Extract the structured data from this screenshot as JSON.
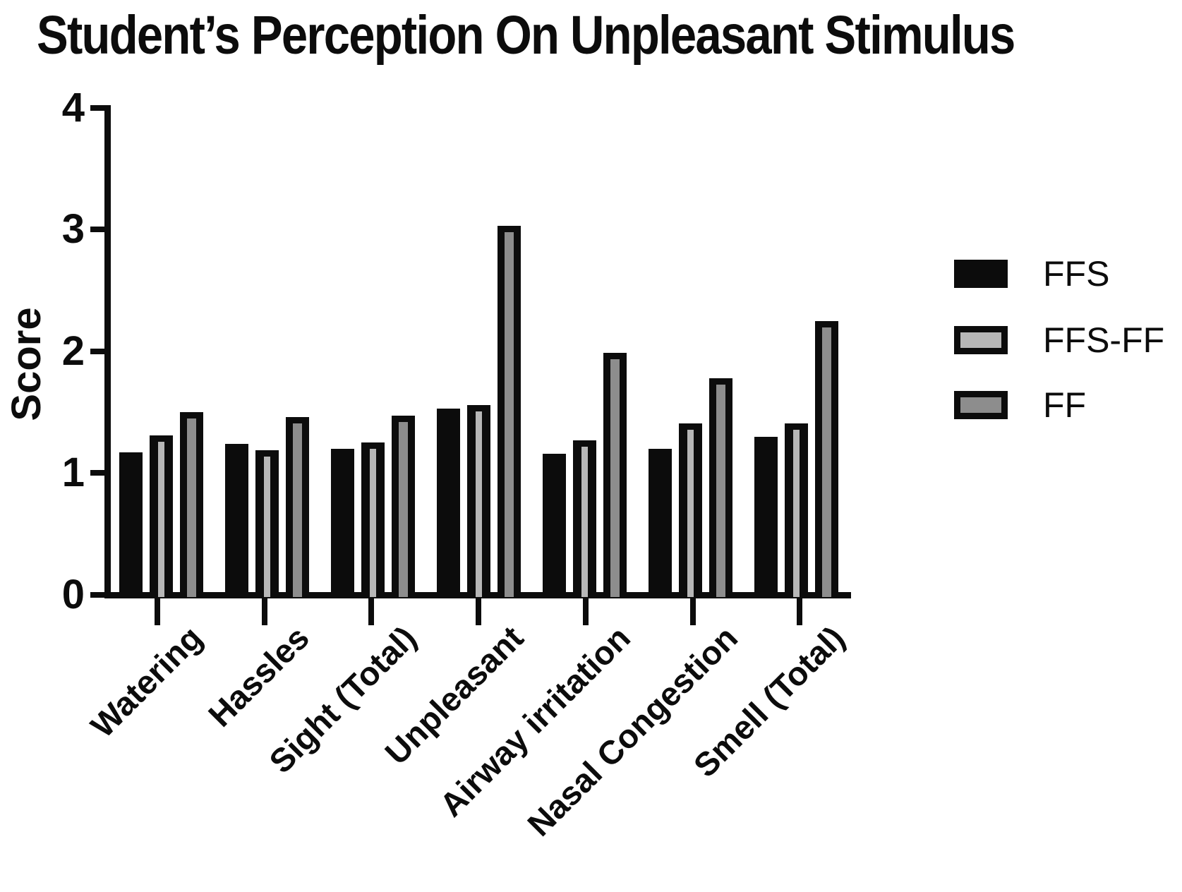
{
  "figure": {
    "background": "#ffffff",
    "ink": "#0c0c0c"
  },
  "chart_data": {
    "type": "bar",
    "title": "Student’s Perception On Unpleasant Stimulus",
    "ylabel": "Score",
    "xlabel": "",
    "ylim": [
      0,
      4
    ],
    "yticks": [
      0,
      1,
      2,
      3,
      4
    ],
    "grid": false,
    "legend_position": "right",
    "bar_outline": "#0c0c0c",
    "categories": [
      "Watering",
      "Hassles",
      "Sight (Total)",
      "Unpleasant",
      "Airway irritation",
      "Nasal Congestion",
      "Smell (Total)"
    ],
    "series": [
      {
        "name": "FFS",
        "fill": "#0c0c0c",
        "values": [
          1.17,
          1.24,
          1.2,
          1.53,
          1.16,
          1.2,
          1.3
        ]
      },
      {
        "name": "FFS-FF",
        "fill": "#b7b7b7",
        "values": [
          1.31,
          1.19,
          1.25,
          1.56,
          1.27,
          1.41,
          1.41
        ]
      },
      {
        "name": "FF",
        "fill": "#8d8d8d",
        "values": [
          1.5,
          1.46,
          1.47,
          3.03,
          1.99,
          1.78,
          2.25
        ]
      }
    ]
  }
}
